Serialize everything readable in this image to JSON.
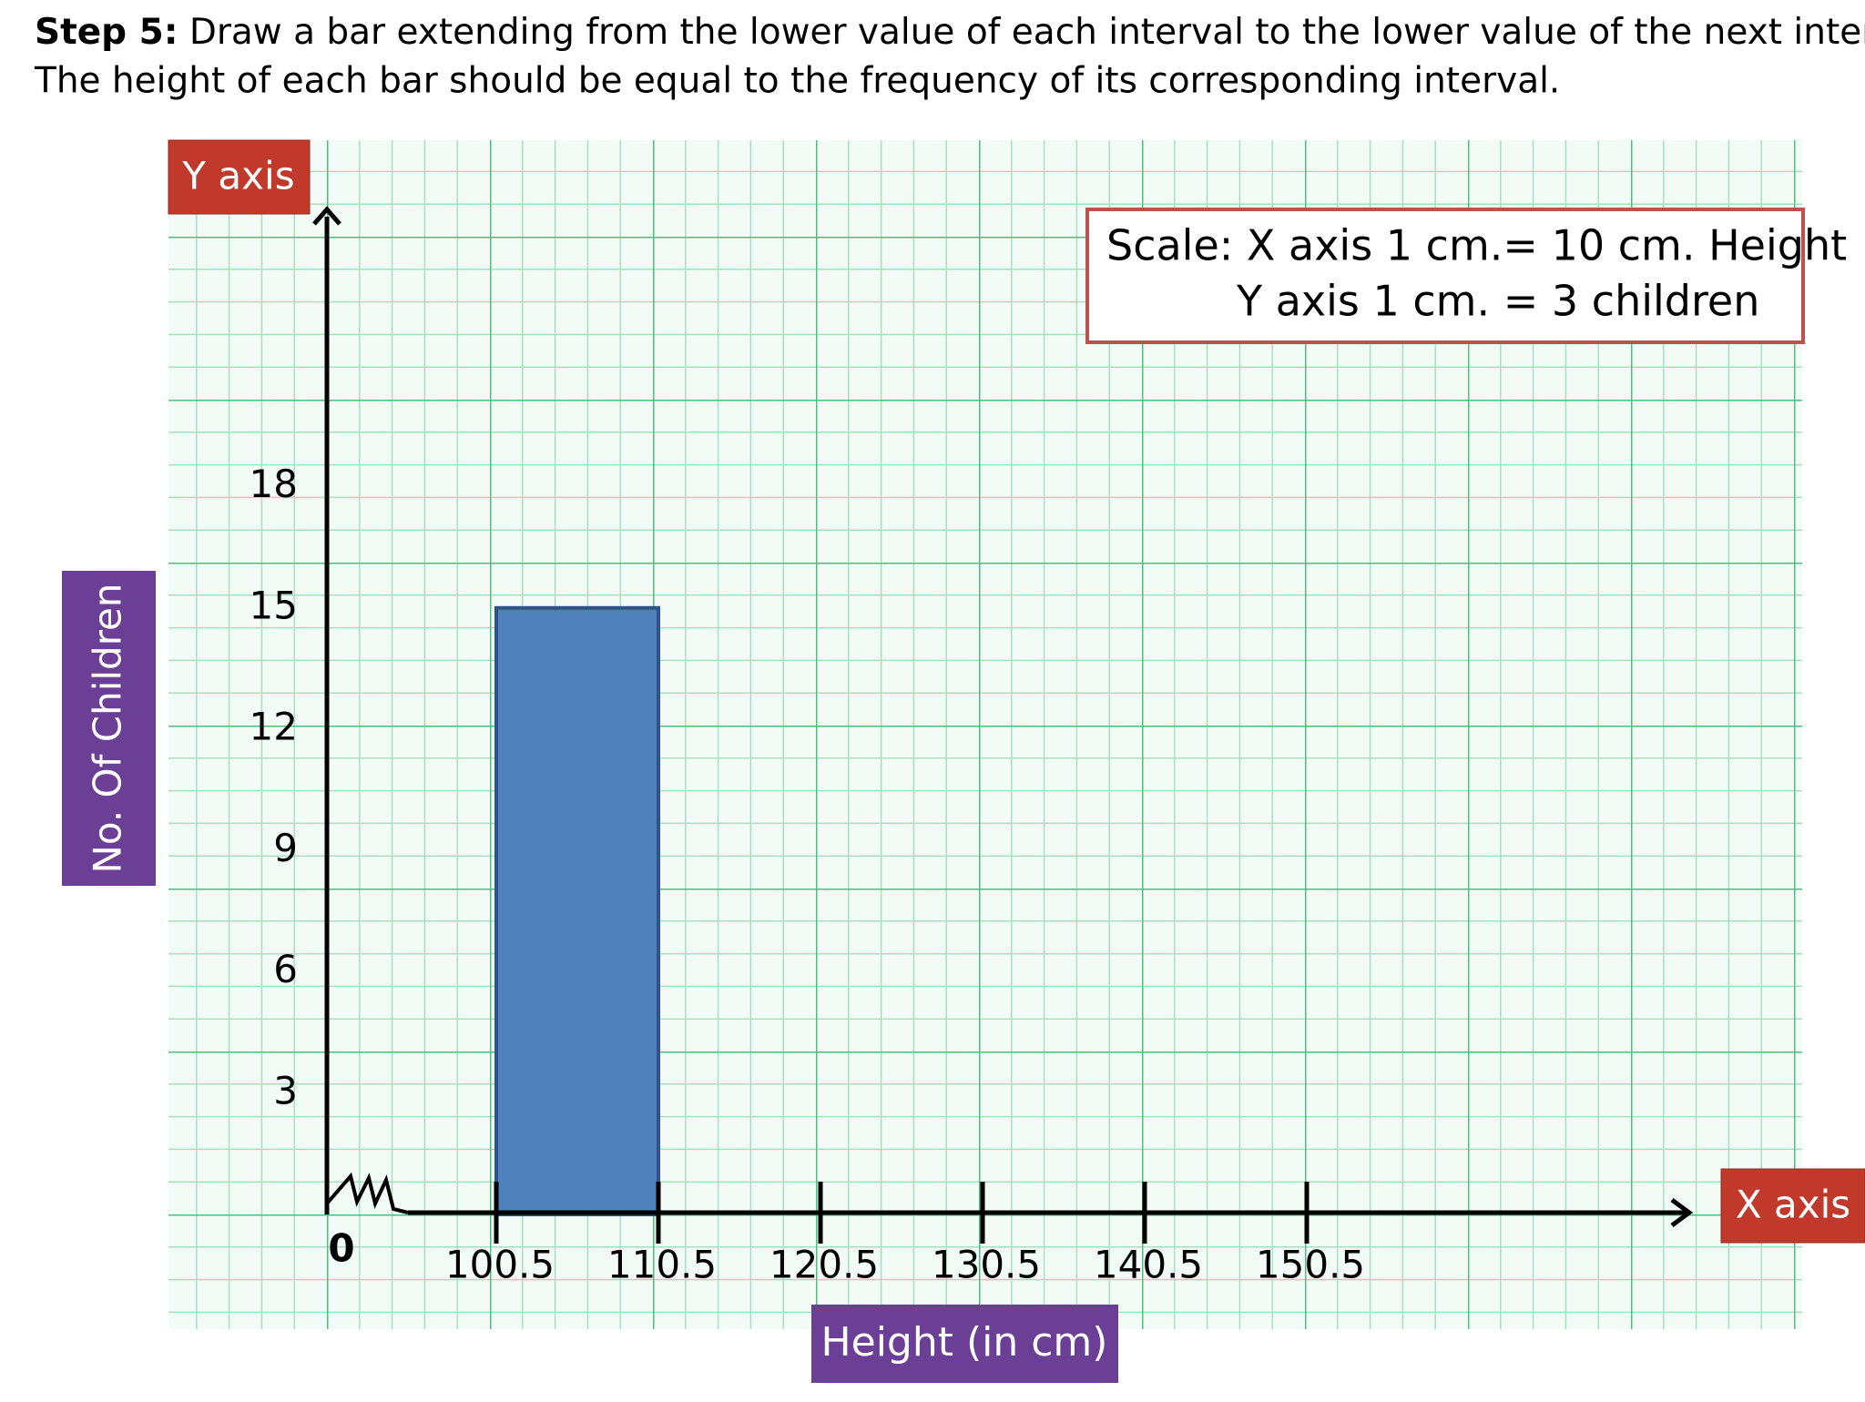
{
  "heading": {
    "label": "Step 5:",
    "line1": "Draw a bar extending from the lower value of each interval to the lower value of the next interval.",
    "line2": "The height of each bar should be equal to the frequency of its corresponding interval."
  },
  "chart_data": {
    "type": "histogram",
    "bins": [
      100.5,
      110.5
    ],
    "values": [
      15
    ],
    "color": "#4f81bd",
    "xlim": [
      90.5,
      170.5
    ],
    "xticks": [
      100.5,
      110.5,
      120.5,
      130.5,
      140.5,
      150.5
    ],
    "ylim": [
      0,
      24
    ],
    "yticks": [
      3,
      6,
      9,
      12,
      15,
      18
    ],
    "x_label": "Height (in cm)",
    "y_label": "No. Of Children",
    "x_axis_tag": "X axis",
    "y_axis_tag": "Y axis",
    "origin_label": "0",
    "scale_note": [
      "Scale: X axis 1 cm.= 10 cm. Height",
      "Y axis 1 cm. = 3 children"
    ]
  }
}
